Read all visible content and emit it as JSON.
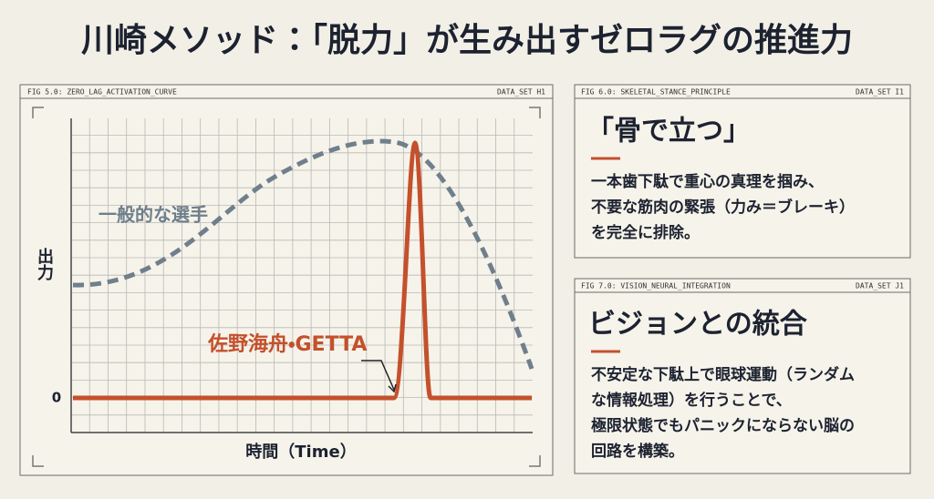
{
  "header": {
    "title": "川崎メソッド：「脱力」が生み出すゼロラグの推進力"
  },
  "figure_left": {
    "fig_label": "FIG 5.0: ZERO_LAG_ACTIVATION_CURVE",
    "data_set": "DATA_SET H1",
    "y_axis_label": "出力",
    "y_zero": 0,
    "x_axis_label": "時間（Time）",
    "curve_labels": [
      "一般的な選手",
      "佐野海舟・GETTA"
    ]
  },
  "panels": [
    {
      "fig_label": "FIG 6.0: SKELETAL_STANCE_PRINCIPLE",
      "data_set": "DATA_SET I1",
      "title": "「骨で立つ」",
      "body": [
        "一本歯下駄で重心の真理を掴み、",
        "不要な筋肉の緊張（力み＝ブレーキ）",
        "を完全に排除。"
      ]
    },
    {
      "fig_label": "FIG 7.0: VISION_NEURAL_INTEGRATION",
      "data_set": "DATA_SET J1",
      "title": "ビジョンとの統合",
      "body": [
        "不安定な下駄上で眼球運動（ランダム",
        "な情報処理）を行うことで、",
        "極限状態でもパニックにならない脳の",
        "回路を構築。"
      ]
    }
  ]
}
